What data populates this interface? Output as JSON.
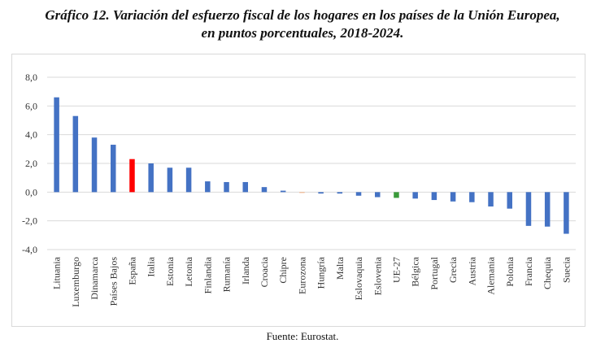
{
  "title_line1": "Gráfico 12. Variación del esfuerzo fiscal de los hogares en los países de la Unión Europea,",
  "title_line2": "en puntos porcentuales, 2018-2024.",
  "source": "Fuente: Eurostat.",
  "colors": {
    "default": "#4472c4",
    "highlight_spain": "#ff0000",
    "eu27": "#3a9a3a",
    "eurozone": "#f4b183",
    "grid": "#d9d9d9",
    "text": "#333333"
  },
  "chart_data": {
    "type": "bar",
    "title": "Variación del esfuerzo fiscal de los hogares en los países de la Unión Europea, en puntos porcentuales, 2018-2024",
    "xlabel": "",
    "ylabel": "",
    "ylim": [
      -4,
      8
    ],
    "yticks": [
      8,
      6,
      4,
      2,
      0,
      -2,
      -4
    ],
    "ytick_labels": [
      "8,0",
      "6,0",
      "4,0",
      "2,0",
      "0,0",
      "-2,0",
      "-4,0"
    ],
    "grid": true,
    "categories": [
      "Lituania",
      "Luxemburgo",
      "Dinamarca",
      "Países Bajos",
      "España",
      "Italia",
      "Estonia",
      "Letonia",
      "Finlandia",
      "Rumanía",
      "Irlanda",
      "Croacia",
      "Chipre",
      "Eurozona",
      "Hungría",
      "Malta",
      "Eslovaquia",
      "Eslovenia",
      "UE-27",
      "Bélgica",
      "Portugal",
      "Grecia",
      "Austria",
      "Alemania",
      "Polonia",
      "Francia",
      "Chequia",
      "Suecia"
    ],
    "values": [
      6.6,
      5.3,
      3.8,
      3.3,
      2.3,
      2.0,
      1.7,
      1.7,
      0.75,
      0.7,
      0.7,
      0.35,
      0.1,
      -0.05,
      -0.1,
      -0.1,
      -0.25,
      -0.35,
      -0.4,
      -0.45,
      -0.55,
      -0.65,
      -0.7,
      -1.0,
      -1.15,
      -2.35,
      -2.4,
      -2.9
    ],
    "bar_colors": [
      "default",
      "default",
      "default",
      "default",
      "highlight_spain",
      "default",
      "default",
      "default",
      "default",
      "default",
      "default",
      "default",
      "default",
      "eurozone",
      "default",
      "default",
      "default",
      "default",
      "eu27",
      "default",
      "default",
      "default",
      "default",
      "default",
      "default",
      "default",
      "default",
      "default"
    ]
  }
}
